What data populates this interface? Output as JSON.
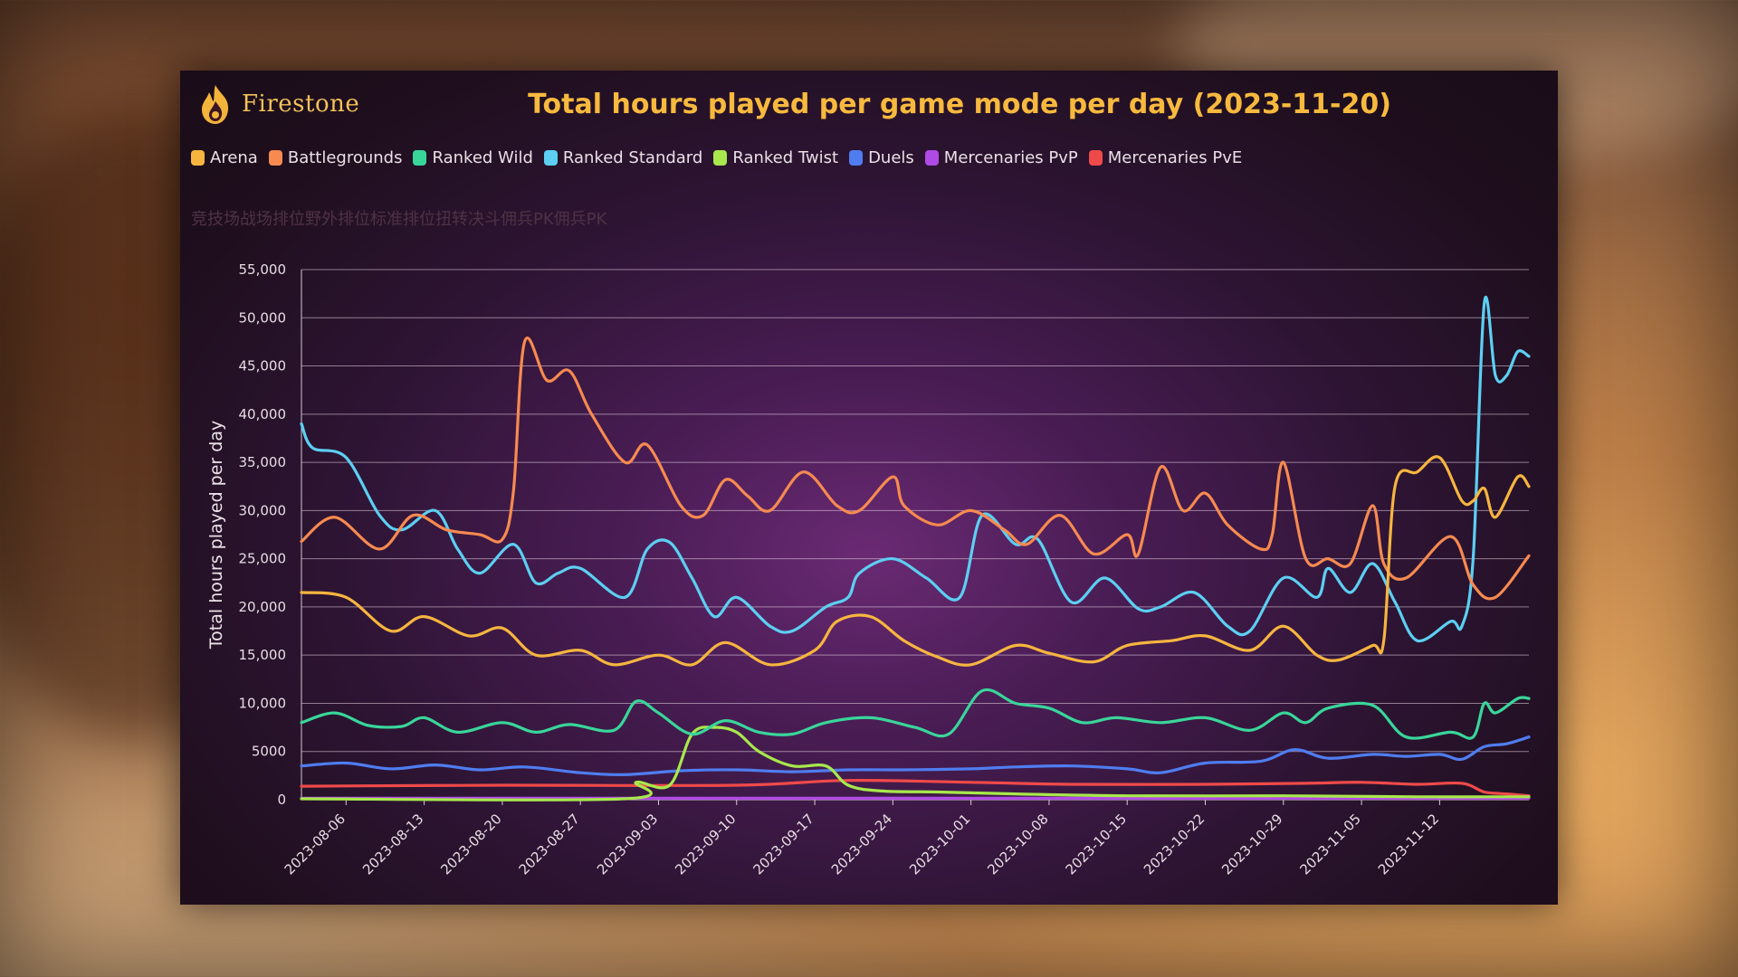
{
  "brand": {
    "name": "Firestone",
    "logo_icon": "flame-icon",
    "logo_color": "#f2b43a"
  },
  "watermark_text": "竞技场战场排位野外排位标准排位扭转决斗佣兵PK佣兵PK",
  "chart_data": {
    "type": "line",
    "title": "Total hours played per game mode per day (2023-11-20)",
    "ylabel": "Total hours played per day",
    "xlabel": "",
    "ylim": [
      0,
      55000
    ],
    "yticks": [
      "55,000",
      "50,000",
      "45,000",
      "40,000",
      "35,000",
      "30,000",
      "25,000",
      "20,000",
      "15,000",
      "10,000",
      "5000",
      "0"
    ],
    "ytick_values": [
      55000,
      50000,
      45000,
      40000,
      35000,
      30000,
      25000,
      20000,
      15000,
      10000,
      5000,
      0
    ],
    "xrange": [
      "2023-08-02",
      "2023-11-20"
    ],
    "xticks": [
      "2023-08-06",
      "2023-08-13",
      "2023-08-20",
      "2023-08-27",
      "2023-09-03",
      "2023-09-10",
      "2023-09-17",
      "2023-09-24",
      "2023-10-01",
      "2023-10-08",
      "2023-10-15",
      "2023-10-22",
      "2023-10-29",
      "2023-11-05",
      "2023-11-12"
    ],
    "grid": true,
    "legend_position": "top-left",
    "series": [
      {
        "name": "Arena",
        "color": "#f6b53f",
        "points": [
          [
            "2023-08-02",
            21500
          ],
          [
            "2023-08-06",
            21000
          ],
          [
            "2023-08-10",
            17500
          ],
          [
            "2023-08-13",
            19000
          ],
          [
            "2023-08-17",
            17000
          ],
          [
            "2023-08-20",
            17800
          ],
          [
            "2023-08-23",
            15000
          ],
          [
            "2023-08-27",
            15500
          ],
          [
            "2023-08-30",
            14000
          ],
          [
            "2023-09-03",
            15000
          ],
          [
            "2023-09-06",
            14000
          ],
          [
            "2023-09-09",
            16300
          ],
          [
            "2023-09-13",
            14000
          ],
          [
            "2023-09-17",
            15500
          ],
          [
            "2023-09-19",
            18500
          ],
          [
            "2023-09-22",
            19000
          ],
          [
            "2023-09-25",
            16500
          ],
          [
            "2023-09-28",
            14800
          ],
          [
            "2023-10-01",
            14000
          ],
          [
            "2023-10-05",
            16000
          ],
          [
            "2023-10-08",
            15200
          ],
          [
            "2023-10-12",
            14300
          ],
          [
            "2023-10-15",
            16000
          ],
          [
            "2023-10-19",
            16500
          ],
          [
            "2023-10-22",
            17000
          ],
          [
            "2023-10-26",
            15500
          ],
          [
            "2023-10-29",
            18000
          ],
          [
            "2023-11-01",
            15000
          ],
          [
            "2023-11-03",
            14500
          ],
          [
            "2023-11-06",
            16000
          ],
          [
            "2023-11-07",
            16500
          ],
          [
            "2023-11-08",
            32500
          ],
          [
            "2023-11-10",
            34000
          ],
          [
            "2023-11-12",
            35500
          ],
          [
            "2023-11-14",
            31000
          ],
          [
            "2023-11-15",
            31000
          ],
          [
            "2023-11-16",
            32300
          ],
          [
            "2023-11-17",
            29300
          ],
          [
            "2023-11-19",
            33500
          ],
          [
            "2023-11-20",
            32500
          ]
        ]
      },
      {
        "name": "Battlegrounds",
        "color": "#f68a50",
        "points": [
          [
            "2023-08-02",
            26800
          ],
          [
            "2023-08-05",
            29300
          ],
          [
            "2023-08-09",
            26000
          ],
          [
            "2023-08-12",
            29500
          ],
          [
            "2023-08-15",
            28000
          ],
          [
            "2023-08-18",
            27500
          ],
          [
            "2023-08-20",
            27000
          ],
          [
            "2023-08-21",
            32000
          ],
          [
            "2023-08-22",
            47500
          ],
          [
            "2023-08-24",
            43500
          ],
          [
            "2023-08-26",
            44500
          ],
          [
            "2023-08-28",
            40000
          ],
          [
            "2023-08-31",
            35000
          ],
          [
            "2023-09-02",
            36800
          ],
          [
            "2023-09-05",
            30500
          ],
          [
            "2023-09-07",
            29500
          ],
          [
            "2023-09-09",
            33200
          ],
          [
            "2023-09-11",
            31500
          ],
          [
            "2023-09-13",
            30000
          ],
          [
            "2023-09-16",
            34000
          ],
          [
            "2023-09-19",
            30500
          ],
          [
            "2023-09-21",
            30000
          ],
          [
            "2023-09-24",
            33500
          ],
          [
            "2023-09-25",
            30500
          ],
          [
            "2023-09-28",
            28500
          ],
          [
            "2023-10-01",
            30000
          ],
          [
            "2023-10-04",
            28000
          ],
          [
            "2023-10-06",
            26500
          ],
          [
            "2023-10-09",
            29500
          ],
          [
            "2023-10-12",
            25500
          ],
          [
            "2023-10-15",
            27500
          ],
          [
            "2023-10-16",
            25500
          ],
          [
            "2023-10-18",
            34500
          ],
          [
            "2023-10-20",
            30000
          ],
          [
            "2023-10-22",
            31800
          ],
          [
            "2023-10-24",
            28500
          ],
          [
            "2023-10-27",
            26000
          ],
          [
            "2023-10-28",
            27500
          ],
          [
            "2023-10-29",
            35000
          ],
          [
            "2023-10-31",
            25000
          ],
          [
            "2023-11-02",
            25000
          ],
          [
            "2023-11-04",
            24500
          ],
          [
            "2023-11-06",
            30500
          ],
          [
            "2023-11-07",
            24500
          ],
          [
            "2023-11-09",
            23000
          ],
          [
            "2023-11-13",
            27300
          ],
          [
            "2023-11-15",
            22300
          ],
          [
            "2023-11-17",
            21000
          ],
          [
            "2023-11-20",
            25300
          ]
        ]
      },
      {
        "name": "Ranked Wild",
        "color": "#39d69a",
        "points": [
          [
            "2023-08-02",
            8000
          ],
          [
            "2023-08-05",
            9000
          ],
          [
            "2023-08-08",
            7700
          ],
          [
            "2023-08-11",
            7600
          ],
          [
            "2023-08-13",
            8500
          ],
          [
            "2023-08-16",
            7000
          ],
          [
            "2023-08-20",
            8000
          ],
          [
            "2023-08-23",
            7000
          ],
          [
            "2023-08-26",
            7800
          ],
          [
            "2023-08-30",
            7200
          ],
          [
            "2023-09-01",
            10200
          ],
          [
            "2023-09-03",
            9000
          ],
          [
            "2023-09-06",
            6800
          ],
          [
            "2023-09-09",
            8200
          ],
          [
            "2023-09-12",
            7000
          ],
          [
            "2023-09-15",
            6800
          ],
          [
            "2023-09-18",
            8000
          ],
          [
            "2023-09-22",
            8500
          ],
          [
            "2023-09-26",
            7500
          ],
          [
            "2023-09-29",
            6800
          ],
          [
            "2023-10-02",
            11300
          ],
          [
            "2023-10-05",
            10000
          ],
          [
            "2023-10-08",
            9500
          ],
          [
            "2023-10-11",
            8000
          ],
          [
            "2023-10-14",
            8500
          ],
          [
            "2023-10-18",
            8000
          ],
          [
            "2023-10-22",
            8500
          ],
          [
            "2023-10-26",
            7200
          ],
          [
            "2023-10-29",
            9000
          ],
          [
            "2023-10-31",
            8000
          ],
          [
            "2023-11-02",
            9500
          ],
          [
            "2023-11-06",
            9800
          ],
          [
            "2023-11-09",
            6500
          ],
          [
            "2023-11-13",
            7000
          ],
          [
            "2023-11-15",
            6500
          ],
          [
            "2023-11-16",
            10000
          ],
          [
            "2023-11-17",
            9000
          ],
          [
            "2023-11-19",
            10500
          ],
          [
            "2023-11-20",
            10500
          ]
        ]
      },
      {
        "name": "Ranked Standard",
        "color": "#5ccff2",
        "points": [
          [
            "2023-08-02",
            39000
          ],
          [
            "2023-08-03",
            36500
          ],
          [
            "2023-08-06",
            35500
          ],
          [
            "2023-08-09",
            29500
          ],
          [
            "2023-08-11",
            28000
          ],
          [
            "2023-08-14",
            30000
          ],
          [
            "2023-08-16",
            26000
          ],
          [
            "2023-08-18",
            23500
          ],
          [
            "2023-08-21",
            26500
          ],
          [
            "2023-08-23",
            22500
          ],
          [
            "2023-08-25",
            23500
          ],
          [
            "2023-08-27",
            24000
          ],
          [
            "2023-08-31",
            21000
          ],
          [
            "2023-09-02",
            26000
          ],
          [
            "2023-09-04",
            26700
          ],
          [
            "2023-09-06",
            23000
          ],
          [
            "2023-09-08",
            19000
          ],
          [
            "2023-09-10",
            21000
          ],
          [
            "2023-09-13",
            18000
          ],
          [
            "2023-09-15",
            17500
          ],
          [
            "2023-09-18",
            20000
          ],
          [
            "2023-09-20",
            21000
          ],
          [
            "2023-09-21",
            23500
          ],
          [
            "2023-09-24",
            25000
          ],
          [
            "2023-09-27",
            23000
          ],
          [
            "2023-09-30",
            21000
          ],
          [
            "2023-10-02",
            29500
          ],
          [
            "2023-10-05",
            26500
          ],
          [
            "2023-10-07",
            27000
          ],
          [
            "2023-10-10",
            20500
          ],
          [
            "2023-10-13",
            23000
          ],
          [
            "2023-10-16",
            19800
          ],
          [
            "2023-10-18",
            20000
          ],
          [
            "2023-10-21",
            21500
          ],
          [
            "2023-10-24",
            18000
          ],
          [
            "2023-10-26",
            17500
          ],
          [
            "2023-10-29",
            23000
          ],
          [
            "2023-11-01",
            21000
          ],
          [
            "2023-11-02",
            24000
          ],
          [
            "2023-11-04",
            21500
          ],
          [
            "2023-11-06",
            24500
          ],
          [
            "2023-11-08",
            20500
          ],
          [
            "2023-11-10",
            16500
          ],
          [
            "2023-11-13",
            18500
          ],
          [
            "2023-11-14",
            18000
          ],
          [
            "2023-11-15",
            25000
          ],
          [
            "2023-11-16",
            51500
          ],
          [
            "2023-11-17",
            44000
          ],
          [
            "2023-11-18",
            44000
          ],
          [
            "2023-11-19",
            46500
          ],
          [
            "2023-11-20",
            46000
          ]
        ]
      },
      {
        "name": "Ranked Twist",
        "color": "#a8e84c",
        "points": [
          [
            "2023-08-02",
            0
          ],
          [
            "2023-08-31",
            0
          ],
          [
            "2023-09-01",
            1800
          ],
          [
            "2023-09-04",
            1500
          ],
          [
            "2023-09-06",
            6800
          ],
          [
            "2023-09-08",
            7500
          ],
          [
            "2023-09-10",
            7000
          ],
          [
            "2023-09-12",
            5000
          ],
          [
            "2023-09-15",
            3500
          ],
          [
            "2023-09-18",
            3500
          ],
          [
            "2023-09-20",
            1500
          ],
          [
            "2023-09-23",
            900
          ],
          [
            "2023-09-28",
            800
          ],
          [
            "2023-10-05",
            600
          ],
          [
            "2023-10-15",
            400
          ],
          [
            "2023-10-29",
            400
          ],
          [
            "2023-11-10",
            300
          ],
          [
            "2023-11-20",
            300
          ]
        ]
      },
      {
        "name": "Duels",
        "color": "#4f7df0",
        "points": [
          [
            "2023-08-02",
            3500
          ],
          [
            "2023-08-06",
            3800
          ],
          [
            "2023-08-10",
            3200
          ],
          [
            "2023-08-14",
            3600
          ],
          [
            "2023-08-18",
            3100
          ],
          [
            "2023-08-22",
            3400
          ],
          [
            "2023-08-27",
            2800
          ],
          [
            "2023-08-31",
            2600
          ],
          [
            "2023-09-05",
            3000
          ],
          [
            "2023-09-10",
            3100
          ],
          [
            "2023-09-15",
            2900
          ],
          [
            "2023-09-20",
            3100
          ],
          [
            "2023-09-25",
            3100
          ],
          [
            "2023-10-01",
            3200
          ],
          [
            "2023-10-05",
            3400
          ],
          [
            "2023-10-10",
            3500
          ],
          [
            "2023-10-15",
            3200
          ],
          [
            "2023-10-18",
            2800
          ],
          [
            "2023-10-22",
            3800
          ],
          [
            "2023-10-27",
            4000
          ],
          [
            "2023-10-30",
            5200
          ],
          [
            "2023-11-02",
            4300
          ],
          [
            "2023-11-06",
            4700
          ],
          [
            "2023-11-09",
            4500
          ],
          [
            "2023-11-12",
            4700
          ],
          [
            "2023-11-14",
            4200
          ],
          [
            "2023-11-16",
            5500
          ],
          [
            "2023-11-18",
            5800
          ],
          [
            "2023-11-20",
            6500
          ]
        ]
      },
      {
        "name": "Mercenaries PvP",
        "color": "#b04ae6",
        "points": [
          [
            "2023-08-02",
            150
          ],
          [
            "2023-11-20",
            150
          ]
        ]
      },
      {
        "name": "Mercenaries PvE",
        "color": "#ef4a4a",
        "points": [
          [
            "2023-08-02",
            1400
          ],
          [
            "2023-08-20",
            1500
          ],
          [
            "2023-09-10",
            1500
          ],
          [
            "2023-09-20",
            2000
          ],
          [
            "2023-10-01",
            1800
          ],
          [
            "2023-10-10",
            1600
          ],
          [
            "2023-10-22",
            1600
          ],
          [
            "2023-10-31",
            1700
          ],
          [
            "2023-11-05",
            1800
          ],
          [
            "2023-11-10",
            1600
          ],
          [
            "2023-11-14",
            1700
          ],
          [
            "2023-11-16",
            800
          ],
          [
            "2023-11-18",
            600
          ],
          [
            "2023-11-20",
            400
          ]
        ]
      }
    ]
  }
}
